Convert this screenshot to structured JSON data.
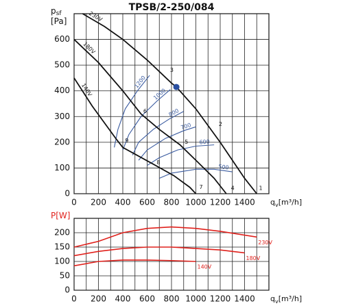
{
  "chart_data": [
    {
      "type": "line",
      "title": "TPSB/2-250/084",
      "y_label": {
        "main": "p",
        "sub": "sf",
        "unit": "[Pa]"
      },
      "x_label": {
        "main": "q",
        "sub": "v",
        "unit": "[m³/h]"
      },
      "label_color": "#111111",
      "xlim": [
        0,
        1600
      ],
      "xticks": [
        0,
        200,
        400,
        600,
        800,
        1000,
        1200,
        1400
      ],
      "x_minor_ticks": [
        100,
        300,
        500,
        700,
        900,
        1100,
        1300,
        1500
      ],
      "ylim": [
        0,
        700
      ],
      "yticks": [
        0,
        100,
        200,
        300,
        400,
        500,
        600
      ],
      "grid": true,
      "series": [
        {
          "name": "230V",
          "color": "#111111",
          "x": [
            70,
            250,
            400,
            600,
            800,
            840,
            1000,
            1200,
            1400,
            1500
          ],
          "y": [
            700,
            650,
            600,
            520,
            430,
            415,
            330,
            200,
            60,
            0
          ]
        },
        {
          "name": "180V",
          "color": "#111111",
          "x": [
            0,
            200,
            400,
            550,
            700,
            870,
            1000,
            1150,
            1250
          ],
          "y": [
            600,
            510,
            400,
            310,
            250,
            190,
            130,
            60,
            0
          ]
        },
        {
          "name": "140V",
          "color": "#111111",
          "x": [
            0,
            150,
            350,
            400,
            650,
            820,
            950,
            1000
          ],
          "y": [
            450,
            340,
            210,
            180,
            115,
            70,
            25,
            0
          ]
        }
      ],
      "iso_lines": [
        {
          "name": "1200",
          "color": "#3a5ba0",
          "x": [
            330,
            360,
            420,
            520,
            620
          ],
          "y": [
            180,
            250,
            330,
            400,
            460
          ]
        },
        {
          "name": "1000",
          "color": "#3a5ba0",
          "x": [
            400,
            450,
            550,
            680,
            790
          ],
          "y": [
            170,
            230,
            300,
            360,
            405
          ]
        },
        {
          "name": "800",
          "color": "#3a5ba0",
          "x": [
            480,
            530,
            650,
            780,
            900
          ],
          "y": [
            150,
            200,
            250,
            290,
            320
          ]
        },
        {
          "name": "700",
          "color": "#3a5ba0",
          "x": [
            530,
            600,
            750,
            900,
            1000
          ],
          "y": [
            130,
            170,
            215,
            245,
            260
          ]
        },
        {
          "name": "600",
          "color": "#3a5ba0",
          "x": [
            600,
            700,
            850,
            1000,
            1150
          ],
          "y": [
            110,
            140,
            170,
            185,
            190
          ]
        },
        {
          "name": "500",
          "color": "#3a5ba0",
          "x": [
            700,
            800,
            1000,
            1150,
            1300
          ],
          "y": [
            60,
            80,
            95,
            95,
            85
          ]
        }
      ],
      "points": [
        {
          "label": "1",
          "x": 1490,
          "y": 10
        },
        {
          "label": "2",
          "x": 1160,
          "y": 260
        },
        {
          "label": "3",
          "x": 760,
          "y": 470
        },
        {
          "label": "4",
          "x": 1260,
          "y": 10
        },
        {
          "label": "5",
          "x": 880,
          "y": 190
        },
        {
          "label": "6",
          "x": 540,
          "y": 310
        },
        {
          "label": "7",
          "x": 1000,
          "y": 15
        },
        {
          "label": "8",
          "x": 650,
          "y": 110
        },
        {
          "label": "9",
          "x": 390,
          "y": 195
        }
      ],
      "marker": {
        "x": 840,
        "y": 415,
        "color": "#2a4fa0"
      }
    },
    {
      "type": "line",
      "y_label": {
        "main": "P",
        "unit": "[W]"
      },
      "x_label": {
        "main": "q",
        "sub": "v",
        "unit": "[m³/h]"
      },
      "label_color": "#e0201b",
      "xlim": [
        0,
        1600
      ],
      "xticks": [
        0,
        200,
        400,
        600,
        800,
        1000,
        1200,
        1400
      ],
      "x_minor_ticks": [
        100,
        300,
        500,
        700,
        900,
        1100,
        1300,
        1500
      ],
      "ylim": [
        0,
        250
      ],
      "yticks": [
        0,
        50,
        100,
        150,
        200
      ],
      "grid": true,
      "series": [
        {
          "name": "230V",
          "color": "#e0201b",
          "x": [
            0,
            200,
            400,
            600,
            800,
            1000,
            1200,
            1500
          ],
          "y": [
            150,
            170,
            200,
            215,
            220,
            215,
            205,
            185
          ]
        },
        {
          "name": "180V",
          "color": "#e0201b",
          "x": [
            0,
            200,
            400,
            600,
            800,
            1000,
            1200,
            1400
          ],
          "y": [
            120,
            135,
            145,
            150,
            150,
            145,
            140,
            130
          ]
        },
        {
          "name": "140V",
          "color": "#e0201b",
          "x": [
            0,
            200,
            400,
            600,
            800,
            1000
          ],
          "y": [
            85,
            100,
            105,
            105,
            103,
            100
          ]
        }
      ]
    }
  ]
}
